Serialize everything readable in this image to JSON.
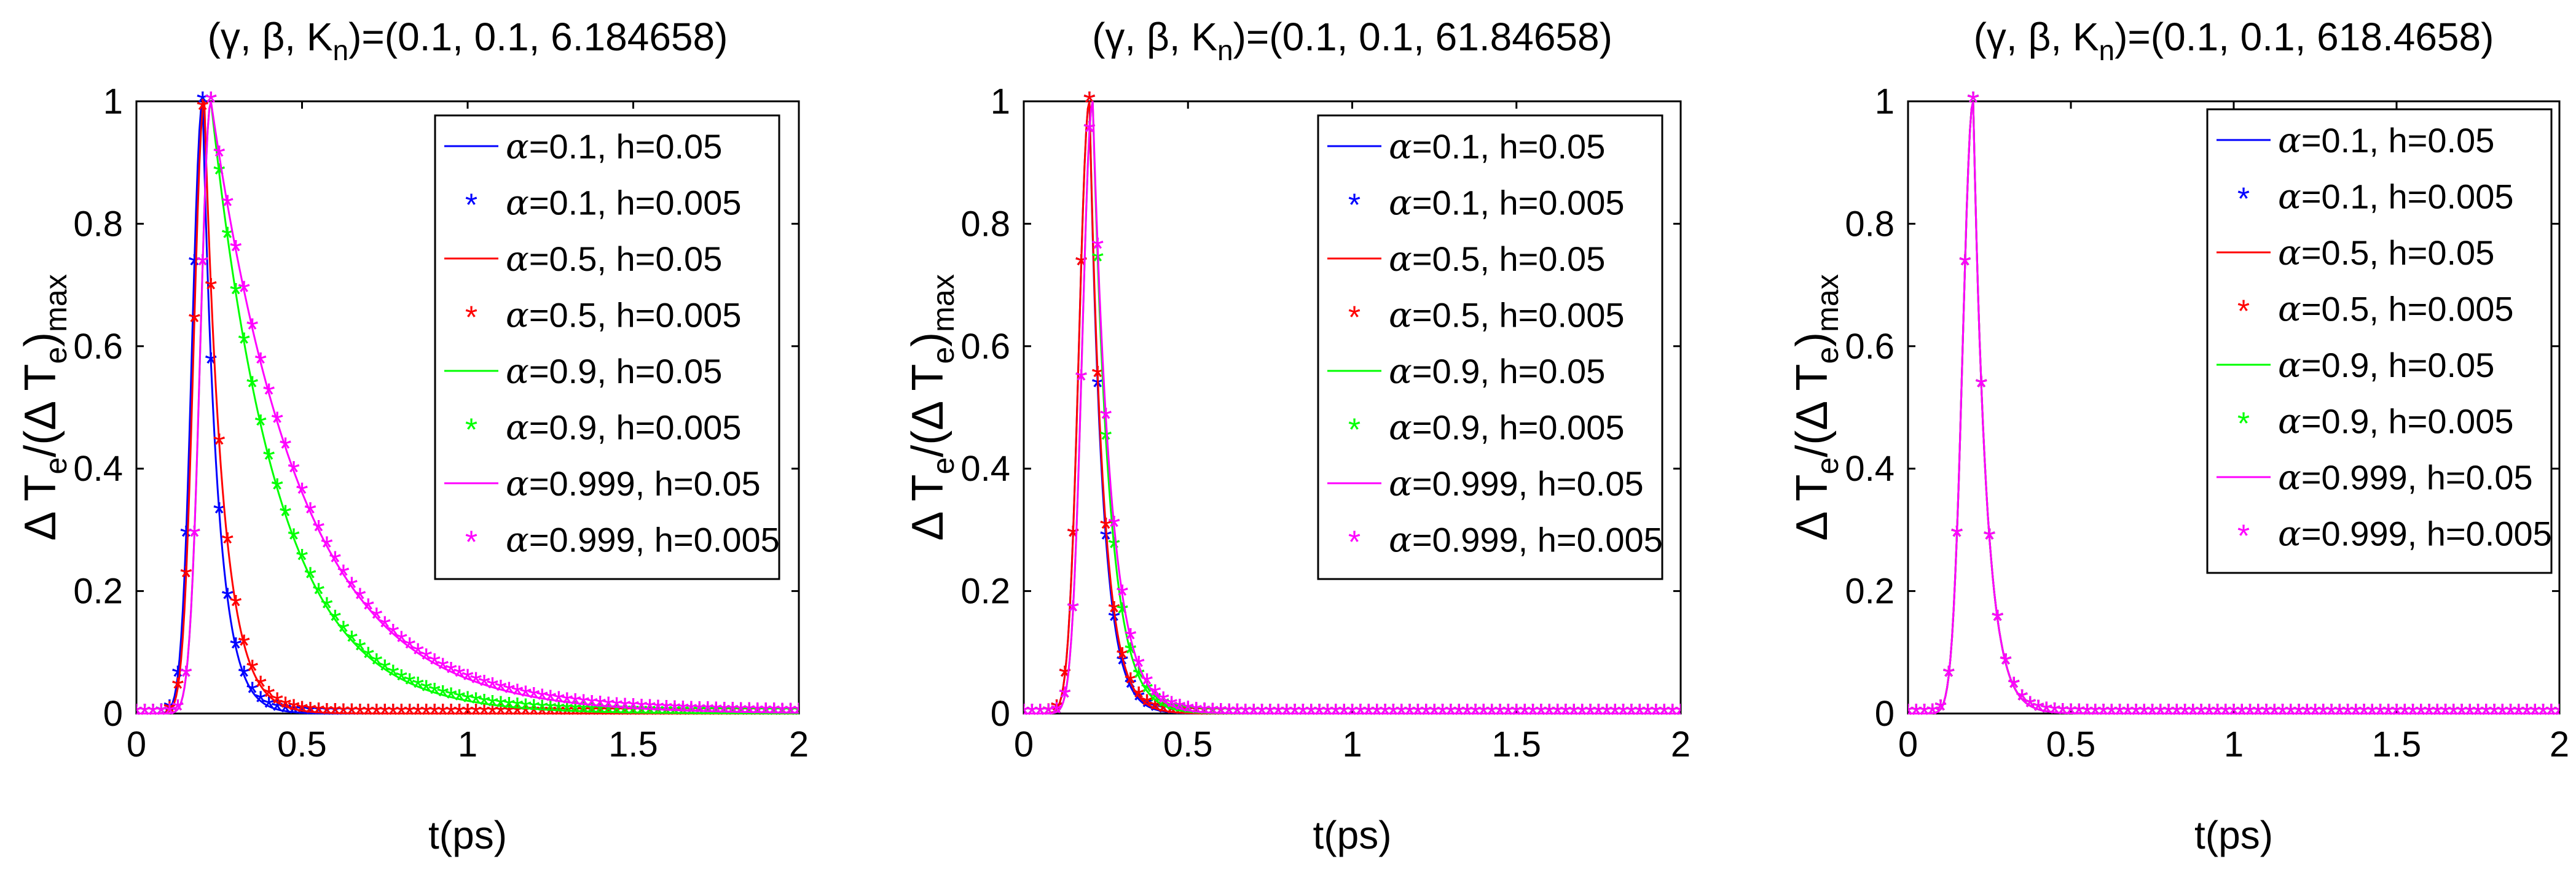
{
  "figure": {
    "layout": "three side-by-side subplots",
    "shared_ylabel_text": "ΔT_e/(ΔT_e)_max"
  },
  "chart_data": [
    {
      "type": "line",
      "title_prefix": "(γ, β,  K",
      "title_sub": "n",
      "title_suffix": ")=(0.1, 0.1, 6.184658)",
      "params": {
        "gamma": 0.1,
        "beta": 0.1,
        "Kn": 6.184658
      },
      "xlabel": "t(ps)",
      "ylabel": {
        "delta": "Δ",
        "T": "T",
        "sub_e": "e",
        "mid": "/(Δ",
        "T2": "T",
        "sub_e2": "e",
        "close": ")",
        "sub_max": "max"
      },
      "xlim": [
        0,
        2
      ],
      "ylim": [
        0,
        1
      ],
      "xticks": [
        "0",
        "0.5",
        "1",
        "1.5",
        "2"
      ],
      "yticks": [
        "0",
        "0.2",
        "0.4",
        "0.6",
        "0.8",
        "1"
      ],
      "pulse": {
        "peak_times": {
          "0.1": 0.2,
          "0.5": 0.205,
          "0.9": 0.225,
          "0.999": 0.225
        },
        "rise_width": 0.045,
        "decay_const": {
          "0.1": 0.045,
          "0.5": 0.055,
          "0.9": 0.2,
          "0.999": 0.27
        }
      },
      "legend": {
        "position": "top-right"
      }
    },
    {
      "type": "line",
      "title_prefix": "(γ, β,  K",
      "title_sub": "n",
      "title_suffix": ")=(0.1, 0.1, 61.84658)",
      "params": {
        "gamma": 0.1,
        "beta": 0.1,
        "Kn": 61.84658
      },
      "xlabel": "t(ps)",
      "ylabel": {
        "delta": "Δ",
        "T": "T",
        "sub_e": "e",
        "mid": "/(Δ",
        "T2": "T",
        "sub_e2": "e",
        "close": ")",
        "sub_max": "max"
      },
      "xlim": [
        0,
        2
      ],
      "ylim": [
        0,
        1
      ],
      "xticks": [
        "0",
        "0.5",
        "1",
        "1.5",
        "2"
      ],
      "yticks": [
        "0",
        "0.2",
        "0.4",
        "0.6",
        "0.8",
        "1"
      ],
      "pulse": {
        "peak_times": {
          "0.1": 0.2,
          "0.5": 0.2,
          "0.9": 0.21,
          "0.999": 0.21
        },
        "rise_width": 0.045,
        "decay_const": {
          "0.1": 0.04,
          "0.5": 0.042,
          "0.9": 0.05,
          "0.999": 0.055
        }
      },
      "legend": {
        "position": "top-right"
      }
    },
    {
      "type": "line",
      "title_prefix": "(γ, β,  K",
      "title_sub": "n",
      "title_suffix": ")=(0.1, 0.1, 618.4658)",
      "params": {
        "gamma": 0.1,
        "beta": 0.1,
        "Kn": 618.4658
      },
      "xlabel": "t(ps)",
      "ylabel": {
        "delta": "Δ",
        "T": "T",
        "sub_e": "e",
        "mid": "/(Δ",
        "T2": "T",
        "sub_e2": "e",
        "close": ")",
        "sub_max": "max"
      },
      "xlim": [
        0,
        2
      ],
      "ylim": [
        0,
        1
      ],
      "xticks": [
        "0",
        "0.5",
        "1",
        "1.5",
        "2"
      ],
      "yticks": [
        "0",
        "0.2",
        "0.4",
        "0.6",
        "0.8",
        "1"
      ],
      "pulse": {
        "peak_times": {
          "0.1": 0.2,
          "0.5": 0.2,
          "0.9": 0.2,
          "0.999": 0.2
        },
        "rise_width": 0.045,
        "decay_const": {
          "0.1": 0.04,
          "0.5": 0.04,
          "0.9": 0.04,
          "0.999": 0.04
        }
      },
      "legend": {
        "position": "top-right"
      }
    }
  ],
  "series": [
    {
      "alpha": "0.1",
      "h": "0.05",
      "style": "line",
      "color": "#0000ff",
      "label": "=0.1, h=0.05"
    },
    {
      "alpha": "0.1",
      "h": "0.005",
      "style": "marker",
      "color": "#0000ff",
      "label": "=0.1, h=0.005"
    },
    {
      "alpha": "0.5",
      "h": "0.05",
      "style": "line",
      "color": "#ff0000",
      "label": "=0.5, h=0.05"
    },
    {
      "alpha": "0.5",
      "h": "0.005",
      "style": "marker",
      "color": "#ff0000",
      "label": "=0.5, h=0.005"
    },
    {
      "alpha": "0.9",
      "h": "0.05",
      "style": "line",
      "color": "#00ff00",
      "label": "=0.9, h=0.05"
    },
    {
      "alpha": "0.9",
      "h": "0.005",
      "style": "marker",
      "color": "#00ff00",
      "label": "=0.9, h=0.005"
    },
    {
      "alpha": "0.999",
      "h": "0.05",
      "style": "line",
      "color": "#ff00ff",
      "label": "=0.999, h=0.05"
    },
    {
      "alpha": "0.999",
      "h": "0.005",
      "style": "marker",
      "color": "#ff00ff",
      "label": "=0.999, h=0.005"
    }
  ],
  "legend_symbol": "α",
  "marker_symbol": "*"
}
